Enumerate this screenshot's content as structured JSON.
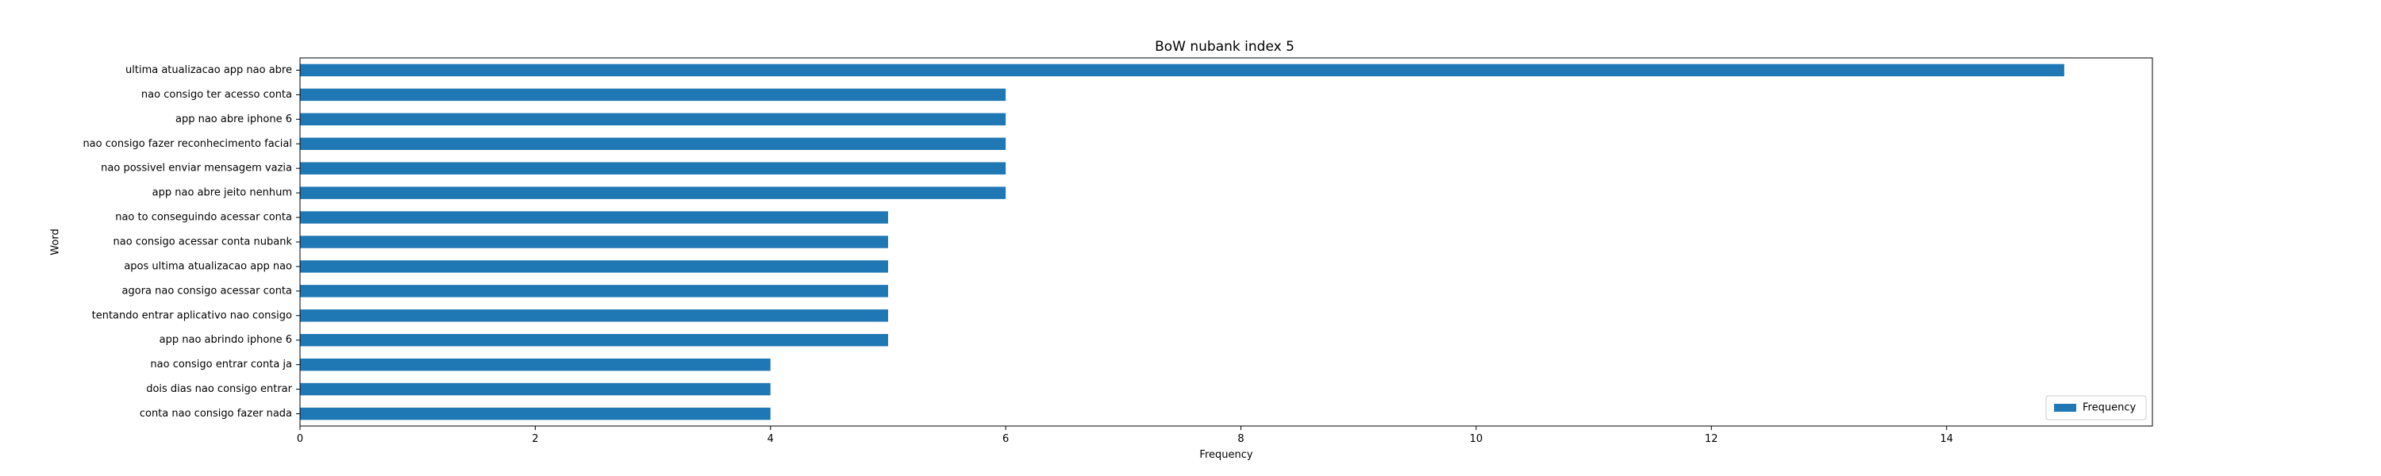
{
  "chart_data": {
    "type": "bar",
    "orientation": "horizontal",
    "title": "BoW nubank index 5",
    "xlabel": "Frequency",
    "ylabel": "Word",
    "xlim": [
      0,
      15.75
    ],
    "xticks": [
      0,
      2,
      4,
      6,
      8,
      10,
      12,
      14
    ],
    "categories": [
      "ultima atualizacao app nao abre",
      "nao consigo ter acesso conta",
      "app nao abre iphone 6",
      "nao consigo fazer reconhecimento facial",
      "nao possivel enviar mensagem vazia",
      "app nao abre jeito nenhum",
      "nao to conseguindo acessar conta",
      "nao consigo acessar conta nubank",
      "apos ultima atualizacao app nao",
      "agora nao consigo acessar conta",
      "tentando entrar aplicativo nao consigo",
      "app nao abrindo iphone 6",
      "nao consigo entrar conta ja",
      "dois dias nao consigo entrar",
      "conta nao consigo fazer nada"
    ],
    "series": [
      {
        "name": "Frequency",
        "color": "#1f77b4",
        "values": [
          15,
          6,
          6,
          6,
          6,
          6,
          5,
          5,
          5,
          5,
          5,
          5,
          4,
          4,
          4
        ]
      }
    ],
    "legend_position": "lower-right",
    "grid": false
  }
}
